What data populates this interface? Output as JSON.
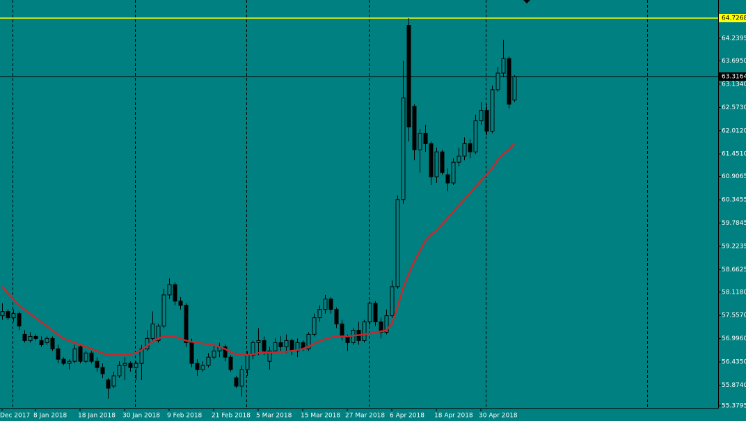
{
  "chart_data": {
    "type": "candlestick",
    "categories": [
      "Dec 2017",
      null,
      null,
      null,
      null,
      null,
      "8 Jan 2018",
      null,
      null,
      null,
      null,
      null,
      null,
      null,
      "18 Jan 2018",
      null,
      null,
      null,
      null,
      null,
      null,
      null,
      "30 Jan 2018",
      null,
      null,
      null,
      null,
      null,
      null,
      null,
      "9 Feb 2018",
      null,
      null,
      null,
      null,
      null,
      null,
      null,
      "21 Feb 2018",
      null,
      null,
      null,
      null,
      null,
      null,
      null,
      "5 Mar 2018",
      null,
      null,
      null,
      null,
      null,
      null,
      null,
      "15 Mar 2018",
      null,
      null,
      null,
      null,
      null,
      null,
      null,
      "27 Mar 2018",
      null,
      null,
      null,
      null,
      null,
      null,
      null,
      "6 Apr 2018",
      null,
      null,
      null,
      null,
      null,
      null,
      null,
      "18 Apr 2018",
      null,
      null,
      null,
      null,
      null,
      null,
      null,
      "30 Apr 2018",
      null,
      null,
      null,
      null,
      null,
      null
    ],
    "open": [
      57.55,
      57.65,
      57.5,
      57.6,
      57.1,
      56.95,
      57.05,
      56.95,
      56.9,
      57.0,
      56.75,
      56.5,
      56.4,
      56.45,
      56.8,
      56.45,
      56.65,
      56.45,
      56.3,
      56.0,
      55.85,
      56.1,
      56.35,
      56.4,
      56.3,
      56.4,
      56.75,
      57.0,
      56.95,
      57.3,
      58.05,
      58.3,
      57.9,
      57.8,
      56.9,
      56.4,
      56.25,
      56.35,
      56.55,
      56.7,
      56.8,
      56.55,
      56.05,
      55.85,
      56.25,
      56.6,
      56.9,
      56.95,
      56.45,
      56.7,
      56.9,
      56.8,
      56.95,
      56.7,
      56.9,
      56.75,
      57.1,
      57.5,
      57.7,
      57.95,
      57.7,
      57.35,
      57.05,
      56.9,
      57.2,
      56.95,
      57.4,
      57.85,
      57.4,
      57.15,
      57.55,
      58.25,
      60.35,
      64.55,
      62.6,
      61.55,
      61.95,
      61.7,
      60.9,
      61.5,
      60.95,
      60.75,
      61.25,
      61.4,
      61.7,
      61.5,
      62.25,
      62.5,
      62.0,
      63.0,
      63.4,
      63.75,
      62.75
    ],
    "high": [
      57.85,
      57.7,
      57.7,
      57.65,
      57.2,
      57.15,
      57.1,
      57.05,
      57.05,
      57.05,
      56.85,
      56.55,
      56.5,
      56.85,
      56.85,
      56.7,
      56.7,
      56.55,
      56.4,
      56.05,
      56.2,
      56.45,
      56.55,
      56.45,
      56.45,
      56.85,
      57.2,
      57.65,
      57.35,
      58.2,
      58.45,
      58.35,
      58.0,
      57.85,
      57.0,
      56.5,
      56.45,
      56.65,
      56.85,
      56.9,
      56.85,
      56.6,
      56.1,
      56.35,
      56.7,
      56.95,
      57.25,
      57.05,
      56.8,
      57.0,
      57.05,
      57.1,
      57.0,
      57.0,
      56.95,
      57.15,
      57.6,
      57.8,
      58.05,
      58.0,
      57.75,
      57.45,
      57.1,
      57.25,
      57.4,
      57.45,
      57.9,
      57.9,
      57.5,
      57.7,
      58.4,
      60.45,
      63.7,
      64.7268,
      62.65,
      62.05,
      62.15,
      61.75,
      61.6,
      61.55,
      61.1,
      61.35,
      61.6,
      61.85,
      61.8,
      62.4,
      62.7,
      62.65,
      63.1,
      63.55,
      64.2,
      63.8,
      63.35
    ],
    "low": [
      57.45,
      57.45,
      57.4,
      57.2,
      56.9,
      56.9,
      56.95,
      56.8,
      56.85,
      56.7,
      56.4,
      56.35,
      56.25,
      56.4,
      56.4,
      56.4,
      56.4,
      56.2,
      56.05,
      55.55,
      55.8,
      56.05,
      56.0,
      56.2,
      56.0,
      56.0,
      56.7,
      56.95,
      56.9,
      57.25,
      57.95,
      57.8,
      57.7,
      56.8,
      56.3,
      56.1,
      56.2,
      56.3,
      56.5,
      56.55,
      56.45,
      56.2,
      55.8,
      55.6,
      56.1,
      56.5,
      56.6,
      56.6,
      56.25,
      56.65,
      56.7,
      56.65,
      56.6,
      56.55,
      56.7,
      56.7,
      57.05,
      57.4,
      57.6,
      57.6,
      57.25,
      56.95,
      56.7,
      56.85,
      56.85,
      56.9,
      57.3,
      57.3,
      57.0,
      57.1,
      57.5,
      58.2,
      60.25,
      61.75,
      61.3,
      61.0,
      61.5,
      60.7,
      60.75,
      60.95,
      60.55,
      60.7,
      61.15,
      61.3,
      61.35,
      61.45,
      62.15,
      61.9,
      61.95,
      62.95,
      63.3,
      62.55,
      62.7
    ],
    "close": [
      57.65,
      57.5,
      57.6,
      57.3,
      56.95,
      57.05,
      57.0,
      56.85,
      57.0,
      56.75,
      56.5,
      56.4,
      56.45,
      56.75,
      56.45,
      56.65,
      56.45,
      56.3,
      56.15,
      55.8,
      56.1,
      56.35,
      56.4,
      56.3,
      56.4,
      56.75,
      57.0,
      57.35,
      57.3,
      58.05,
      58.3,
      57.9,
      57.8,
      56.9,
      56.4,
      56.25,
      56.35,
      56.55,
      56.7,
      56.8,
      56.55,
      56.25,
      55.85,
      56.25,
      56.6,
      56.9,
      56.95,
      56.7,
      56.7,
      56.9,
      56.8,
      56.95,
      56.7,
      56.9,
      56.75,
      57.1,
      57.5,
      57.7,
      57.95,
      57.7,
      57.35,
      57.05,
      56.9,
      57.2,
      56.95,
      57.4,
      57.85,
      57.4,
      57.15,
      57.55,
      58.25,
      60.35,
      62.8,
      62.1,
      61.55,
      61.95,
      61.7,
      60.9,
      61.5,
      61.0,
      60.75,
      61.25,
      61.4,
      61.7,
      61.5,
      62.25,
      62.5,
      62.0,
      63.0,
      63.4,
      63.75,
      62.65,
      63.3164
    ],
    "up_color": "#008080",
    "down_color": "#000000",
    "outline_color": "#000000",
    "ma": {
      "color": "#c8282d",
      "values": [
        58.25,
        58.1,
        57.95,
        57.8,
        57.7,
        57.6,
        57.5,
        57.4,
        57.3,
        57.2,
        57.1,
        57.0,
        56.95,
        56.9,
        56.85,
        56.8,
        56.75,
        56.7,
        56.65,
        56.6,
        56.6,
        56.6,
        56.6,
        56.62,
        56.65,
        56.72,
        56.82,
        56.92,
        57.0,
        57.05,
        57.06,
        57.04,
        57.0,
        56.95,
        56.92,
        56.9,
        56.88,
        56.86,
        56.84,
        56.8,
        56.75,
        56.68,
        56.62,
        56.6,
        56.6,
        56.62,
        56.65,
        56.65,
        56.66,
        56.67,
        56.68,
        56.68,
        56.7,
        56.72,
        56.75,
        56.8,
        56.87,
        56.93,
        56.98,
        57.02,
        57.05,
        57.05,
        57.05,
        57.07,
        57.08,
        57.1,
        57.12,
        57.15,
        57.17,
        57.2,
        57.35,
        57.75,
        58.2,
        58.55,
        58.85,
        59.1,
        59.35,
        59.5,
        59.6,
        59.75,
        59.9,
        60.05,
        60.2,
        60.35,
        60.5,
        60.65,
        60.8,
        60.95,
        61.1,
        61.3,
        61.45,
        61.55,
        61.7
      ]
    },
    "hline": {
      "value": 64.7268,
      "color": "#ffff00"
    },
    "price_line_color": "#000000",
    "ylim": [
      55.312,
      65.163
    ],
    "yticks": [
      55.3795,
      {
        "value": 55.874,
        "label": "55.8740"
      },
      {
        "value": 56.435,
        "label": "56.4350"
      },
      {
        "value": 56.996,
        "label": "56.9960"
      },
      {
        "value": 57.557,
        "label": "57.5570"
      },
      {
        "value": 58.118,
        "label": "58.1180"
      },
      58.6625,
      59.2235,
      59.7845,
      60.3455,
      60.9065,
      {
        "value": 61.451,
        "label": "61.4510"
      },
      {
        "value": 62.012,
        "label": "62.0120"
      },
      {
        "value": 62.573,
        "label": "62.5730"
      },
      {
        "value": 63.134,
        "label": "63.1340"
      },
      {
        "value": 63.695,
        "label": "63.6950"
      },
      64.2395
    ]
  }
}
